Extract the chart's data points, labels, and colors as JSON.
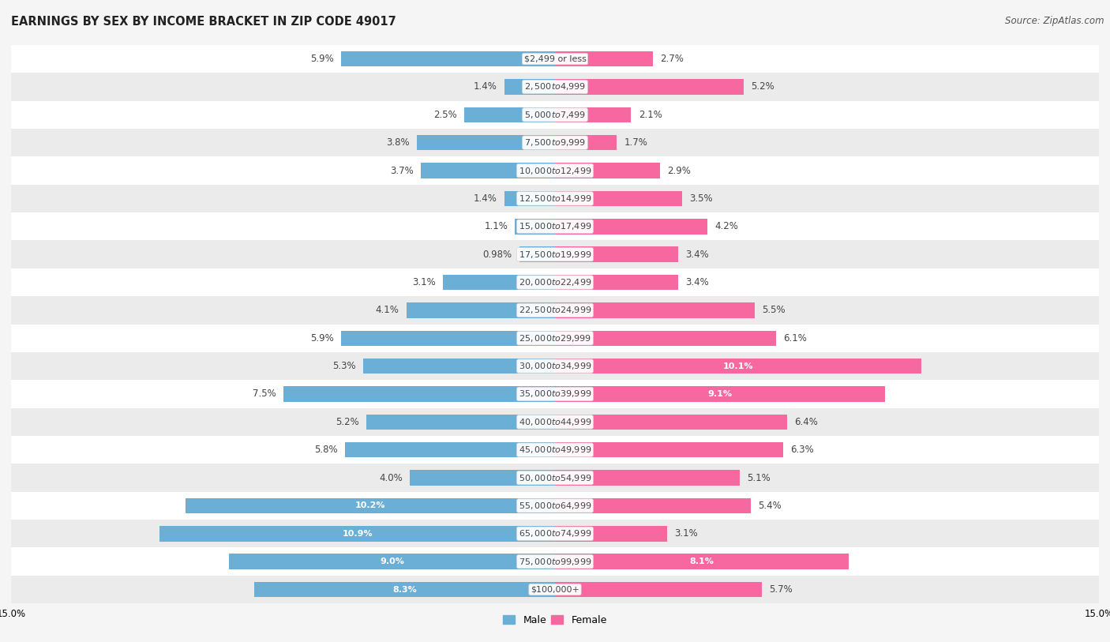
{
  "title": "EARNINGS BY SEX BY INCOME BRACKET IN ZIP CODE 49017",
  "source": "Source: ZipAtlas.com",
  "categories": [
    "$2,499 or less",
    "$2,500 to $4,999",
    "$5,000 to $7,499",
    "$7,500 to $9,999",
    "$10,000 to $12,499",
    "$12,500 to $14,999",
    "$15,000 to $17,499",
    "$17,500 to $19,999",
    "$20,000 to $22,499",
    "$22,500 to $24,999",
    "$25,000 to $29,999",
    "$30,000 to $34,999",
    "$35,000 to $39,999",
    "$40,000 to $44,999",
    "$45,000 to $49,999",
    "$50,000 to $54,999",
    "$55,000 to $64,999",
    "$65,000 to $74,999",
    "$75,000 to $99,999",
    "$100,000+"
  ],
  "male_values": [
    5.9,
    1.4,
    2.5,
    3.8,
    3.7,
    1.4,
    1.1,
    0.98,
    3.1,
    4.1,
    5.9,
    5.3,
    7.5,
    5.2,
    5.8,
    4.0,
    10.2,
    10.9,
    9.0,
    8.3
  ],
  "female_values": [
    2.7,
    5.2,
    2.1,
    1.7,
    2.9,
    3.5,
    4.2,
    3.4,
    3.4,
    5.5,
    6.1,
    10.1,
    9.1,
    6.4,
    6.3,
    5.1,
    5.4,
    3.1,
    8.1,
    5.7
  ],
  "male_color": "#6baed6",
  "female_color": "#f768a1",
  "male_color_light": "#9ecae1",
  "female_color_light": "#fbb4ca",
  "male_label": "Male",
  "female_label": "Female",
  "xlim": 15.0,
  "bg_color": "#f5f5f5",
  "row_color_even": "#ffffff",
  "row_color_odd": "#ebebeb",
  "title_fontsize": 10.5,
  "source_fontsize": 8.5,
  "label_fontsize": 8.5,
  "bar_height": 0.55,
  "legend_fontsize": 9,
  "inside_label_threshold": 8.0
}
